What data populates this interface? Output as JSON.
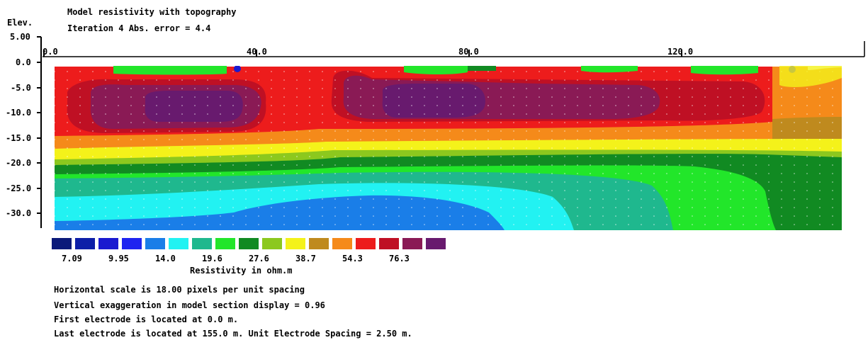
{
  "title": "Model resistivity with topography",
  "subtitle": "Iteration 4 Abs. error = 4.4",
  "elev_label": "Elev.",
  "colorbar": {
    "colors": [
      "#0b1a7a",
      "#0d1fa8",
      "#1a1ad0",
      "#1e24f0",
      "#1a7ee8",
      "#22f2f2",
      "#1fb88e",
      "#22e62a",
      "#118a22",
      "#8cc81e",
      "#f4f21a",
      "#bf8a1e",
      "#f58a1a",
      "#ed1c1c",
      "#bf1024",
      "#8a1a55",
      "#681a6e"
    ],
    "labels": [
      "7.09",
      "9.95",
      "14.0",
      "19.6",
      "27.6",
      "38.7",
      "54.3",
      "76.3"
    ],
    "title": "Resistivity in ohm.m"
  },
  "info_lines": [
    "Horizontal scale is 18.00 pixels per unit spacing",
    "Vertical exaggeration in model section display = 0.96",
    "First electrode is located at 0.0  m.",
    "Last electrode is located at 155.0 m.    Unit Electrode Spacing = 2.50 m."
  ],
  "chart_data": {
    "type": "heatmap",
    "title": "Model resistivity with topography",
    "xlabel": "",
    "ylabel": "Elev.",
    "xlim": [
      0,
      155
    ],
    "ylim": [
      -32.5,
      5
    ],
    "x_ticks": [
      {
        "value": 0,
        "label": "0.0"
      },
      {
        "value": 40,
        "label": "40.0"
      },
      {
        "value": 80,
        "label": "80.0"
      },
      {
        "value": 120,
        "label": "120.0"
      }
    ],
    "y_ticks": [
      {
        "value": 5,
        "label": "5.00"
      },
      {
        "value": 0,
        "label": "0.0"
      },
      {
        "value": -5,
        "label": "-5.0"
      },
      {
        "value": -10,
        "label": "-10.0"
      },
      {
        "value": -15,
        "label": "-15.0"
      },
      {
        "value": -20,
        "label": "-20.0"
      },
      {
        "value": -25,
        "label": "-25.0"
      },
      {
        "value": -30,
        "label": "-30.0"
      }
    ],
    "resistivity_contour_levels_ohm_m": [
      7.09,
      9.95,
      14.0,
      19.6,
      27.6,
      38.7,
      54.3,
      76.3
    ],
    "colorbar_title": "Resistivity in ohm.m"
  }
}
